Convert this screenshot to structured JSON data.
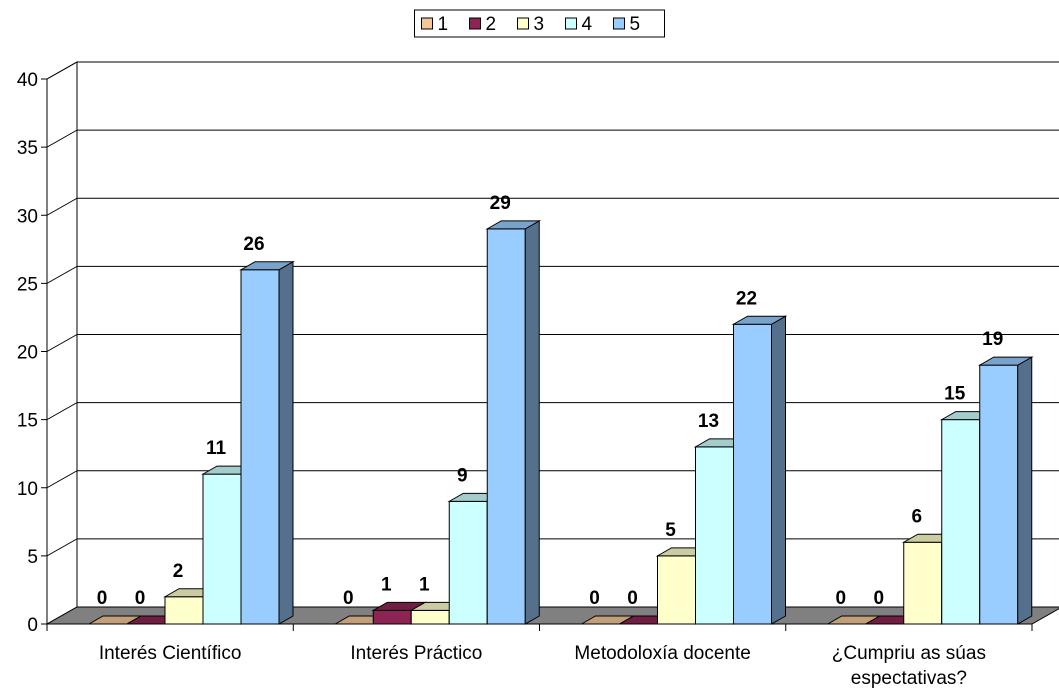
{
  "chart_data": {
    "type": "bar",
    "title": "",
    "xlabel": "",
    "ylabel": "",
    "ylim": [
      0,
      40
    ],
    "yticks": [
      0,
      5,
      10,
      15,
      20,
      25,
      30,
      35,
      40
    ],
    "grid": true,
    "three_d": true,
    "legend_position": "top",
    "categories": [
      [
        "Interés Científico"
      ],
      [
        "Interés Práctico"
      ],
      [
        "Metodoloxía docente"
      ],
      [
        "¿Cumpriu as súas",
        "espectativas?"
      ]
    ],
    "series": [
      {
        "name": "1",
        "values": [
          0,
          0,
          0,
          0
        ],
        "color": "#F4C797"
      },
      {
        "name": "2",
        "values": [
          0,
          1,
          0,
          0
        ],
        "color": "#8E2453"
      },
      {
        "name": "3",
        "values": [
          2,
          1,
          5,
          6
        ],
        "color": "#FFFFCC"
      },
      {
        "name": "4",
        "values": [
          11,
          9,
          13,
          15
        ],
        "color": "#CCFFFF"
      },
      {
        "name": "5",
        "values": [
          26,
          29,
          22,
          19
        ],
        "color": "#99CCFF"
      }
    ],
    "wall_color": "#FFFFFF",
    "floor_color": "#808080"
  }
}
